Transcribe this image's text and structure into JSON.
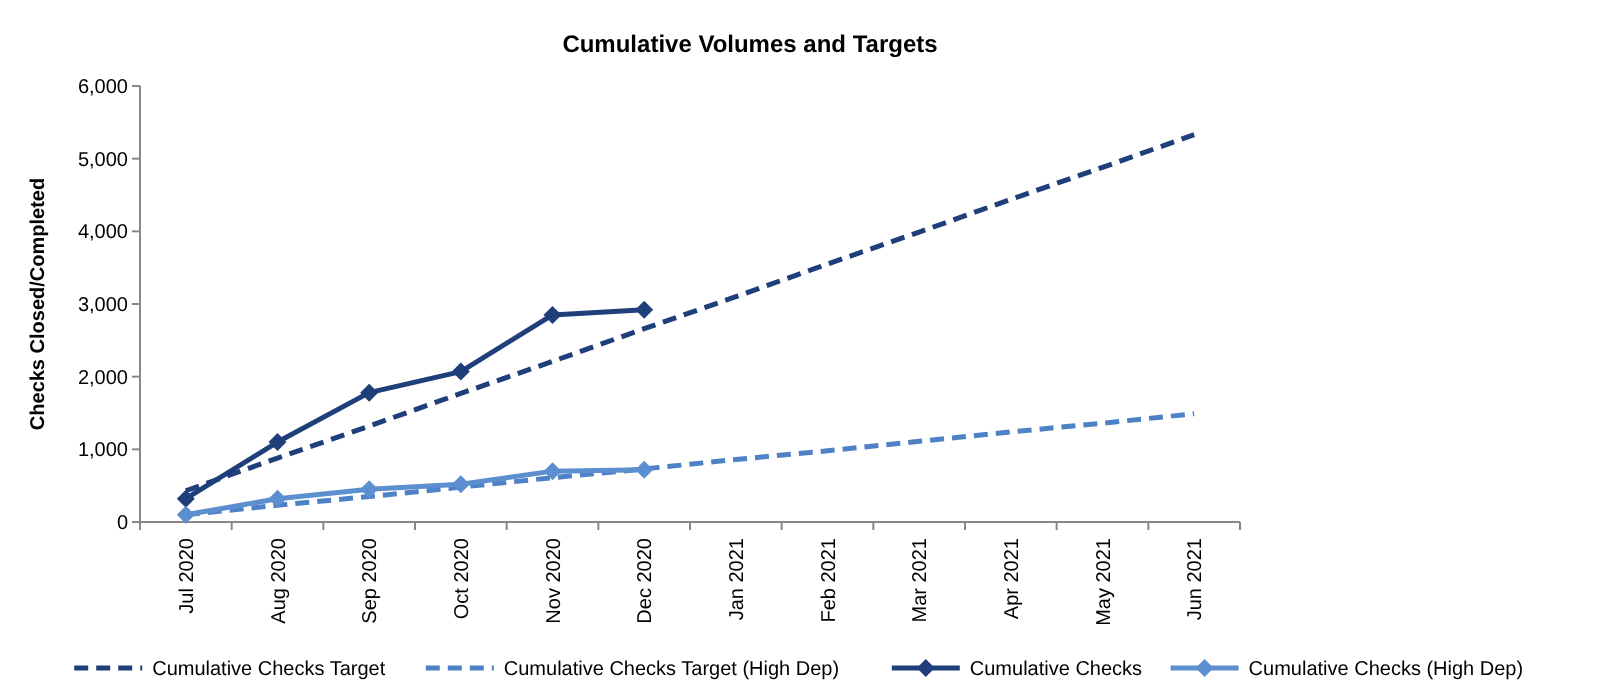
{
  "chart_data": {
    "type": "line",
    "title": "Cumulative Volumes and Targets",
    "ylabel": "Checks Closed/Completed",
    "categories": [
      "Jul 2020",
      "Aug 2020",
      "Sep 2020",
      "Oct 2020",
      "Nov 2020",
      "Dec 2020",
      "Jan 2021",
      "Feb 2021",
      "Mar 2021",
      "Apr 2021",
      "May 2021",
      "Jun 2021"
    ],
    "series": [
      {
        "name": "Cumulative Checks Target",
        "color": "#1f3f7a",
        "line_style": "dashed",
        "marker": "none",
        "values": [
          430,
          880,
          1320,
          1770,
          2210,
          2660,
          3100,
          3550,
          3990,
          4440,
          4880,
          5330
        ]
      },
      {
        "name": "Cumulative Checks Target (High Dep)",
        "color": "#4f81c7",
        "line_style": "dashed",
        "marker": "none",
        "values": [
          100,
          230,
          350,
          480,
          610,
          730,
          860,
          980,
          1110,
          1240,
          1360,
          1490
        ]
      },
      {
        "name": "Cumulative Checks",
        "color": "#1f3f7a",
        "line_style": "solid",
        "marker": "diamond",
        "values": [
          320,
          1100,
          1780,
          2070,
          2850,
          2920,
          null,
          null,
          null,
          null,
          null,
          null
        ]
      },
      {
        "name": "Cumulative Checks (High Dep)",
        "color": "#5b8fd0",
        "line_style": "solid",
        "marker": "diamond",
        "values": [
          100,
          320,
          450,
          520,
          700,
          720,
          null,
          null,
          null,
          null,
          null,
          null
        ]
      }
    ],
    "ylim": [
      0,
      6000
    ],
    "yticks": [
      {
        "value": 0,
        "label": "0"
      },
      {
        "value": 1000,
        "label": "1,000"
      },
      {
        "value": 2000,
        "label": "2,000"
      },
      {
        "value": 3000,
        "label": "3,000"
      },
      {
        "value": 4000,
        "label": "4,000"
      },
      {
        "value": 5000,
        "label": "5,000"
      },
      {
        "value": 6000,
        "label": "6,000"
      }
    ],
    "grid": false,
    "legend": "bottom"
  }
}
